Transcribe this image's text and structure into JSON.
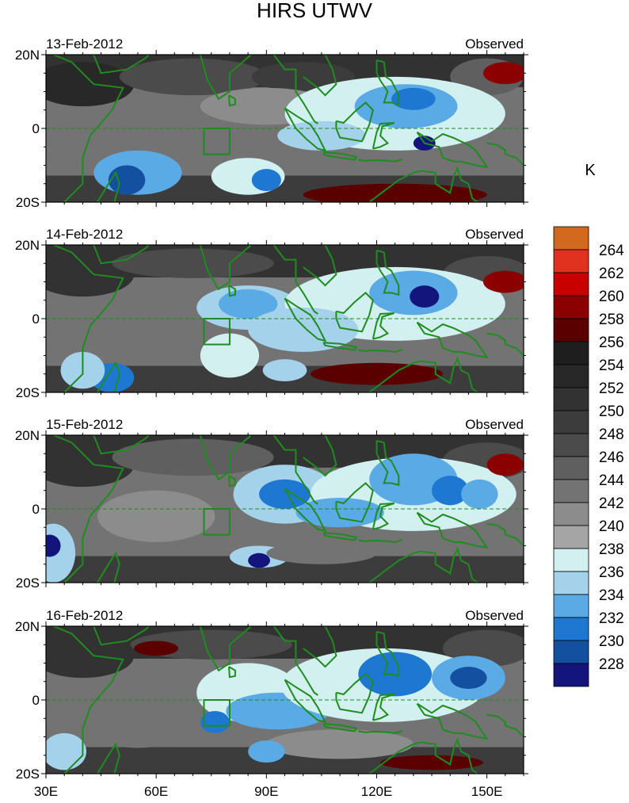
{
  "title": "HIRS UTWV",
  "unit_label": "K",
  "panel_right_label": "Observed",
  "panels": [
    {
      "date": "13-Feb-2012"
    },
    {
      "date": "14-Feb-2012"
    },
    {
      "date": "15-Feb-2012"
    },
    {
      "date": "16-Feb-2012"
    }
  ],
  "lat_labels": [
    "20N",
    "0",
    "20S"
  ],
  "lon_labels": [
    "30E",
    "60E",
    "90E",
    "120E",
    "150E"
  ],
  "colorbar": {
    "labels": [
      "264",
      "262",
      "260",
      "258",
      "256",
      "254",
      "252",
      "250",
      "248",
      "246",
      "244",
      "242",
      "240",
      "238",
      "236",
      "234",
      "232",
      "230",
      "228"
    ],
    "colors": [
      "#d2691e",
      "#e0321e",
      "#c80000",
      "#8b0000",
      "#5a0000",
      "#1e1e1e",
      "#282828",
      "#323232",
      "#3c3c3c",
      "#4b4b4b",
      "#5f5f5f",
      "#737373",
      "#8c8c8c",
      "#a5a5a5",
      "#d2f0f0",
      "#a5d2eb",
      "#5aaae6",
      "#1e78d2",
      "#1450a0",
      "#14147d"
    ]
  },
  "map": {
    "lon_range": [
      30,
      160
    ],
    "lat_range": [
      -20,
      20
    ],
    "box_region": {
      "lon": [
        73,
        80
      ],
      "lat": [
        -7,
        0
      ]
    }
  }
}
